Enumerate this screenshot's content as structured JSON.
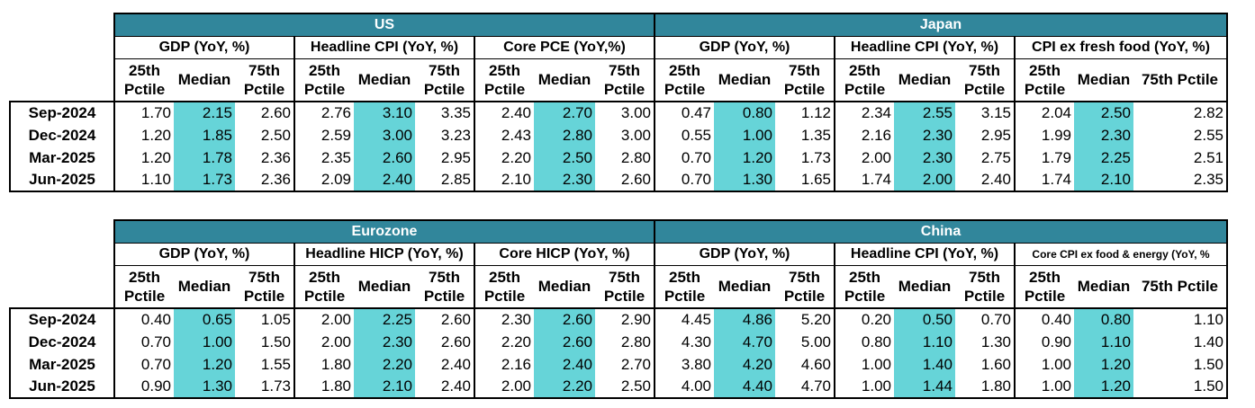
{
  "chart_data": [
    {
      "type": "table",
      "row_labels": [
        "Sep-2024",
        "Dec-2024",
        "Mar-2025",
        "Jun-2025"
      ],
      "sub_columns": [
        "25th Pctile",
        "Median",
        "75th Pctile"
      ],
      "regions": [
        {
          "name": "US",
          "metrics": [
            {
              "name": "GDP (YoY, %)",
              "values": [
                [
                  "1.70",
                  "2.15",
                  "2.60"
                ],
                [
                  "1.20",
                  "1.85",
                  "2.50"
                ],
                [
                  "1.20",
                  "1.78",
                  "2.36"
                ],
                [
                  "1.10",
                  "1.73",
                  "2.36"
                ]
              ]
            },
            {
              "name": "Headline CPI (YoY, %)",
              "values": [
                [
                  "2.76",
                  "3.10",
                  "3.35"
                ],
                [
                  "2.59",
                  "3.00",
                  "3.23"
                ],
                [
                  "2.35",
                  "2.60",
                  "2.95"
                ],
                [
                  "2.09",
                  "2.40",
                  "2.85"
                ]
              ]
            },
            {
              "name": "Core PCE (YoY,%)",
              "values": [
                [
                  "2.40",
                  "2.70",
                  "3.00"
                ],
                [
                  "2.43",
                  "2.80",
                  "3.00"
                ],
                [
                  "2.20",
                  "2.50",
                  "2.80"
                ],
                [
                  "2.10",
                  "2.30",
                  "2.60"
                ]
              ]
            }
          ]
        },
        {
          "name": "Japan",
          "metrics": [
            {
              "name": "GDP (YoY, %)",
              "values": [
                [
                  "0.47",
                  "0.80",
                  "1.12"
                ],
                [
                  "0.55",
                  "1.00",
                  "1.35"
                ],
                [
                  "0.70",
                  "1.20",
                  "1.73"
                ],
                [
                  "0.70",
                  "1.30",
                  "1.65"
                ]
              ]
            },
            {
              "name": "Headline CPI (YoY, %)",
              "values": [
                [
                  "2.34",
                  "2.55",
                  "3.15"
                ],
                [
                  "2.16",
                  "2.30",
                  "2.95"
                ],
                [
                  "2.00",
                  "2.30",
                  "2.75"
                ],
                [
                  "1.74",
                  "2.00",
                  "2.40"
                ]
              ]
            },
            {
              "name": "CPI ex fresh food (YoY, %)",
              "sub_columns": [
                "25th Pctile",
                "Median",
                "75th Pctile"
              ],
              "values": [
                [
                  "2.04",
                  "2.50",
                  "2.82"
                ],
                [
                  "1.99",
                  "2.30",
                  "2.55"
                ],
                [
                  "1.79",
                  "2.25",
                  "2.51"
                ],
                [
                  "1.74",
                  "2.10",
                  "2.35"
                ]
              ]
            }
          ]
        },
        {
          "name": "Eurozone",
          "metrics": [
            {
              "name": "GDP  (YoY, %)",
              "values": [
                [
                  "0.40",
                  "0.65",
                  "1.05"
                ],
                [
                  "0.70",
                  "1.00",
                  "1.50"
                ],
                [
                  "0.70",
                  "1.20",
                  "1.55"
                ],
                [
                  "0.90",
                  "1.30",
                  "1.73"
                ]
              ]
            },
            {
              "name": "Headline HICP (YoY, %)",
              "values": [
                [
                  "2.00",
                  "2.25",
                  "2.60"
                ],
                [
                  "2.00",
                  "2.30",
                  "2.60"
                ],
                [
                  "1.80",
                  "2.20",
                  "2.40"
                ],
                [
                  "1.80",
                  "2.10",
                  "2.40"
                ]
              ]
            },
            {
              "name": "Core HICP (YoY, %)",
              "values": [
                [
                  "2.30",
                  "2.60",
                  "2.90"
                ],
                [
                  "2.20",
                  "2.60",
                  "2.80"
                ],
                [
                  "2.16",
                  "2.40",
                  "2.70"
                ],
                [
                  "2.00",
                  "2.20",
                  "2.50"
                ]
              ]
            }
          ]
        },
        {
          "name": "China",
          "metrics": [
            {
              "name": "GDP (YoY, %)",
              "values": [
                [
                  "4.45",
                  "4.86",
                  "5.20"
                ],
                [
                  "4.30",
                  "4.70",
                  "5.00"
                ],
                [
                  "3.80",
                  "4.20",
                  "4.60"
                ],
                [
                  "4.00",
                  "4.40",
                  "4.70"
                ]
              ]
            },
            {
              "name": "Headline CPI (YoY, %)",
              "values": [
                [
                  "0.20",
                  "0.50",
                  "0.70"
                ],
                [
                  "0.80",
                  "1.10",
                  "1.30"
                ],
                [
                  "1.00",
                  "1.40",
                  "1.60"
                ],
                [
                  "1.00",
                  "1.44",
                  "1.80"
                ]
              ]
            },
            {
              "name": "Core CPI ex food & energy (YoY, %",
              "values": [
                [
                  "0.40",
                  "0.80",
                  "1.10"
                ],
                [
                  "0.90",
                  "1.10",
                  "1.40"
                ],
                [
                  "1.00",
                  "1.20",
                  "1.50"
                ],
                [
                  "1.00",
                  "1.20",
                  "1.50"
                ]
              ]
            }
          ]
        }
      ],
      "highlight_color": "#66d4d8",
      "header_color": "#31869b"
    }
  ]
}
